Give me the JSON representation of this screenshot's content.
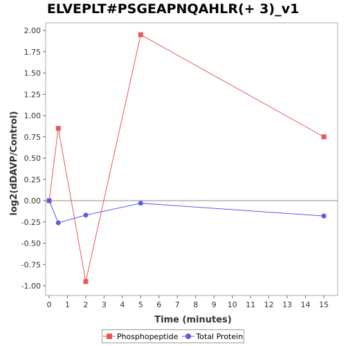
{
  "chart_data": {
    "type": "line",
    "title": "ELVEPLT#PSGEAPNQAHLR(+ 3)_v1",
    "xlabel": "Time (minutes)",
    "ylabel": "log2(dDAVP/Control)",
    "xlim": [
      0,
      16
    ],
    "ylim": [
      -1.1,
      2.1
    ],
    "x_ticks": [
      "0",
      "1",
      "2",
      "3",
      "4",
      "5",
      "6",
      "7",
      "8",
      "9",
      "10",
      "11",
      "12",
      "13",
      "14",
      "15"
    ],
    "y_ticks": [
      "2.00",
      "1.75",
      "1.50",
      "1.25",
      "1.00",
      "0.75",
      "0.50",
      "0.25",
      "0.00",
      "-0.25",
      "-0.50",
      "-0.75",
      "-1.00"
    ],
    "series": [
      {
        "name": "Phosphopeptide",
        "color": "#e8575a",
        "marker": "square",
        "x": [
          0,
          0.5,
          2,
          5,
          15
        ],
        "y": [
          0.0,
          0.85,
          -0.95,
          1.95,
          0.75
        ]
      },
      {
        "name": "Total Protein",
        "color": "#5a5ae8",
        "marker": "circle",
        "x": [
          0,
          0.5,
          2,
          5,
          15
        ],
        "y": [
          0.0,
          -0.26,
          -0.17,
          -0.03,
          -0.18
        ]
      }
    ],
    "zero_line": true,
    "grid": false,
    "legend_position": "bottom"
  }
}
